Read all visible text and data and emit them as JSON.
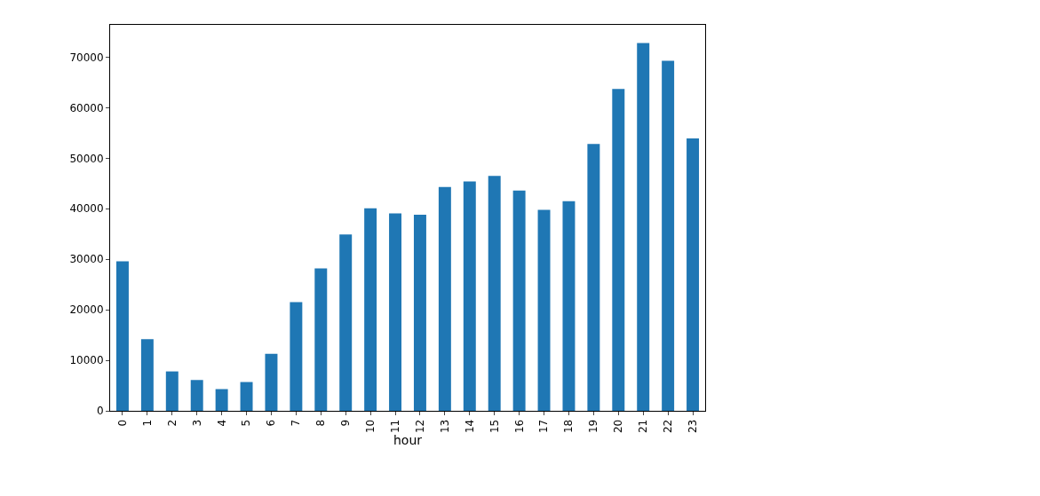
{
  "chart_data": {
    "type": "bar",
    "xlabel": "hour",
    "categories": [
      "0",
      "1",
      "2",
      "3",
      "4",
      "5",
      "6",
      "7",
      "8",
      "9",
      "10",
      "11",
      "12",
      "13",
      "14",
      "15",
      "16",
      "17",
      "18",
      "19",
      "20",
      "21",
      "22",
      "23"
    ],
    "values": [
      29600,
      14200,
      7800,
      6100,
      4300,
      5700,
      11300,
      21500,
      28200,
      34900,
      40100,
      39100,
      38800,
      44300,
      45400,
      46500,
      43600,
      39800,
      41500,
      52800,
      63700,
      72800,
      69300,
      53900
    ],
    "color": "#1f77b4",
    "ylim": [
      0,
      76400
    ],
    "yticks": [
      0,
      10000,
      20000,
      30000,
      40000,
      50000,
      60000,
      70000
    ]
  }
}
